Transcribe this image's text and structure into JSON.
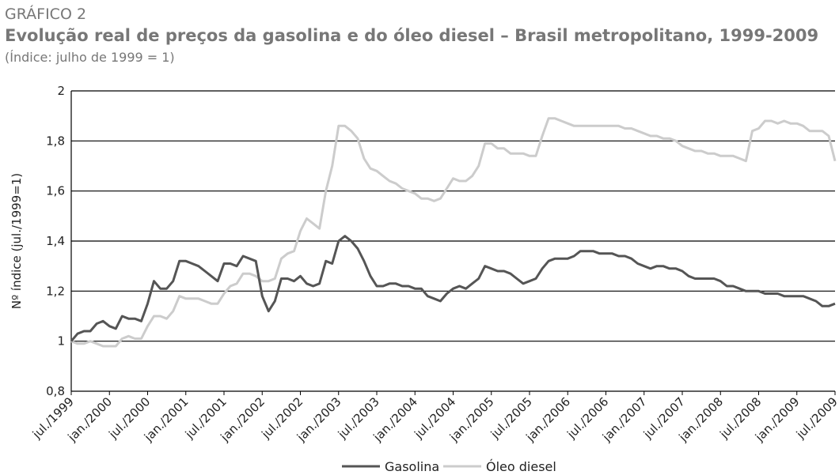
{
  "chart_data": {
    "type": "line",
    "supertitle": "GRÁFICO 2",
    "title": "Evolução real de preços da gasolina e do óleo diesel – Brasil metropolitano, 1999-2009",
    "subtitle": "(Índice: julho de 1999 = 1)",
    "y_label": "Nº índice (jul./1999=1)",
    "categories": [
      "jul./1999",
      null,
      null,
      null,
      null,
      null,
      "jan./2000",
      null,
      null,
      null,
      null,
      null,
      "jul./2000",
      null,
      null,
      null,
      null,
      null,
      "jan./2001",
      null,
      null,
      null,
      null,
      null,
      "jul./2001",
      null,
      null,
      null,
      null,
      null,
      "jan./2002",
      null,
      null,
      null,
      null,
      null,
      "jul./2002",
      null,
      null,
      null,
      null,
      null,
      "jan./2003",
      null,
      null,
      null,
      null,
      null,
      "jul./2003",
      null,
      null,
      null,
      null,
      null,
      "jan./2004",
      null,
      null,
      null,
      null,
      null,
      "jul./2004",
      null,
      null,
      null,
      null,
      null,
      "jan./2005",
      null,
      null,
      null,
      null,
      null,
      "jul./2005",
      null,
      null,
      null,
      null,
      null,
      "jan./2006",
      null,
      null,
      null,
      null,
      null,
      "jul./2006",
      null,
      null,
      null,
      null,
      null,
      "jan./2007",
      null,
      null,
      null,
      null,
      null,
      "jul./2007",
      null,
      null,
      null,
      null,
      null,
      "jan./2008",
      null,
      null,
      null,
      null,
      null,
      "jul./2008",
      null,
      null,
      null,
      null,
      null,
      "jan./2009",
      null,
      null,
      null,
      null,
      null,
      "jul./2009"
    ],
    "series": [
      {
        "name": "Gasolina",
        "color": "#555555",
        "values": [
          1.0,
          1.03,
          1.04,
          1.04,
          1.07,
          1.08,
          1.06,
          1.05,
          1.1,
          1.09,
          1.09,
          1.08,
          1.15,
          1.24,
          1.21,
          1.21,
          1.24,
          1.32,
          1.32,
          1.31,
          1.3,
          1.28,
          1.26,
          1.24,
          1.31,
          1.31,
          1.3,
          1.34,
          1.33,
          1.32,
          1.18,
          1.12,
          1.16,
          1.25,
          1.25,
          1.24,
          1.26,
          1.23,
          1.22,
          1.23,
          1.32,
          1.31,
          1.4,
          1.42,
          1.4,
          1.37,
          1.32,
          1.26,
          1.22,
          1.22,
          1.23,
          1.23,
          1.22,
          1.22,
          1.21,
          1.21,
          1.18,
          1.17,
          1.16,
          1.19,
          1.21,
          1.22,
          1.21,
          1.23,
          1.25,
          1.3,
          1.29,
          1.28,
          1.28,
          1.27,
          1.25,
          1.23,
          1.24,
          1.25,
          1.29,
          1.32,
          1.33,
          1.33,
          1.33,
          1.34,
          1.36,
          1.36,
          1.36,
          1.35,
          1.35,
          1.35,
          1.34,
          1.34,
          1.33,
          1.31,
          1.3,
          1.29,
          1.3,
          1.3,
          1.29,
          1.29,
          1.28,
          1.26,
          1.25,
          1.25,
          1.25,
          1.25,
          1.24,
          1.22,
          1.22,
          1.21,
          1.2,
          1.2,
          1.2,
          1.19,
          1.19,
          1.19,
          1.18,
          1.18,
          1.18,
          1.18,
          1.17,
          1.16,
          1.14,
          1.14,
          1.15
        ]
      },
      {
        "name": "Óleo diesel",
        "color": "#cccccc",
        "values": [
          1.0,
          0.99,
          0.99,
          1.0,
          0.99,
          0.98,
          0.98,
          0.98,
          1.01,
          1.02,
          1.01,
          1.01,
          1.06,
          1.1,
          1.1,
          1.09,
          1.12,
          1.18,
          1.17,
          1.17,
          1.17,
          1.16,
          1.15,
          1.15,
          1.19,
          1.22,
          1.23,
          1.27,
          1.27,
          1.26,
          1.24,
          1.24,
          1.25,
          1.33,
          1.35,
          1.36,
          1.44,
          1.49,
          1.47,
          1.45,
          1.6,
          1.7,
          1.86,
          1.86,
          1.84,
          1.81,
          1.73,
          1.69,
          1.68,
          1.66,
          1.64,
          1.63,
          1.61,
          1.6,
          1.59,
          1.57,
          1.57,
          1.56,
          1.57,
          1.61,
          1.65,
          1.64,
          1.64,
          1.66,
          1.7,
          1.79,
          1.79,
          1.77,
          1.77,
          1.75,
          1.75,
          1.75,
          1.74,
          1.74,
          1.82,
          1.89,
          1.89,
          1.88,
          1.87,
          1.86,
          1.86,
          1.86,
          1.86,
          1.86,
          1.86,
          1.86,
          1.86,
          1.85,
          1.85,
          1.84,
          1.83,
          1.82,
          1.82,
          1.81,
          1.81,
          1.8,
          1.78,
          1.77,
          1.76,
          1.76,
          1.75,
          1.75,
          1.74,
          1.74,
          1.74,
          1.73,
          1.72,
          1.84,
          1.85,
          1.88,
          1.88,
          1.87,
          1.88,
          1.87,
          1.87,
          1.86,
          1.84,
          1.84,
          1.84,
          1.82,
          1.72
        ]
      }
    ],
    "ylim": [
      0.8,
      2
    ],
    "yticks": [
      {
        "value": 0.8,
        "label": "0,8"
      },
      1,
      {
        "value": 1.2,
        "label": "1,2"
      },
      {
        "value": 1.4,
        "label": "1,4"
      },
      {
        "value": 1.6,
        "label": "1,6"
      },
      {
        "value": 1.8,
        "label": "1,8"
      },
      2
    ],
    "grid": true,
    "legend": "bottom"
  }
}
